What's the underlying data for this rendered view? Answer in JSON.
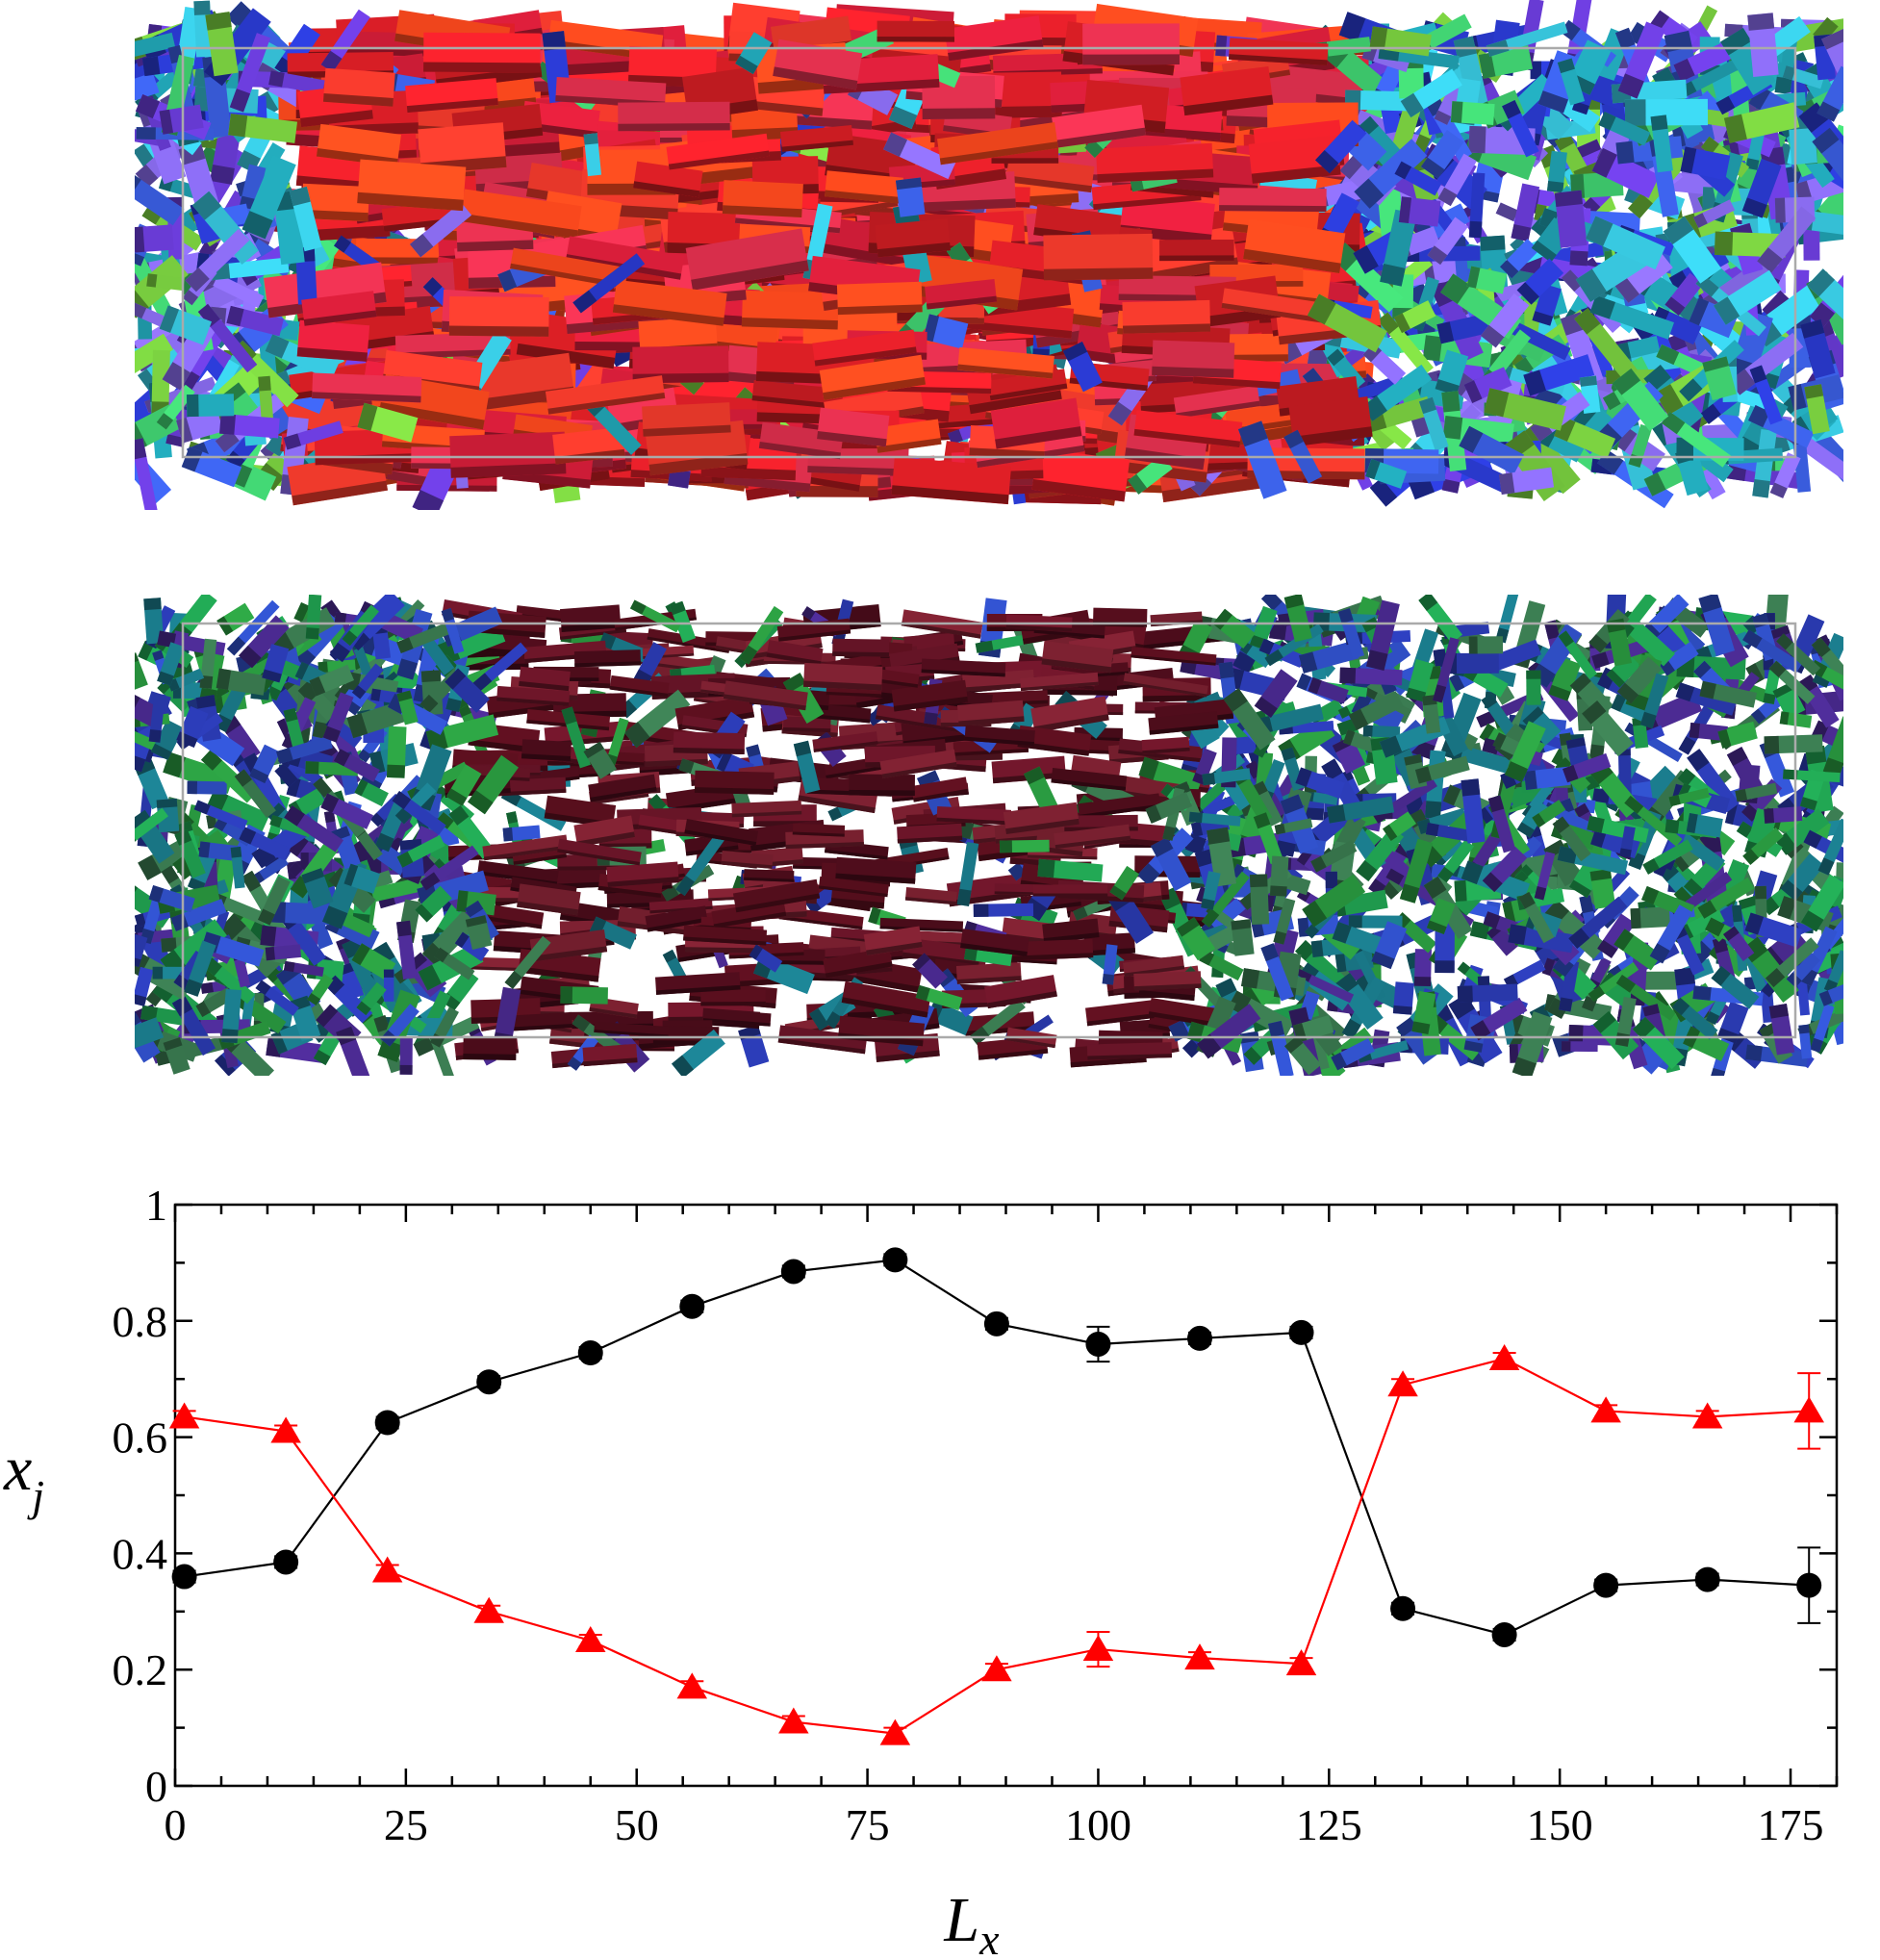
{
  "figure": {
    "panels": [
      {
        "name": "top-snapshot",
        "palette": [
          "#e8202a",
          "#f03a2c",
          "#d81e3a",
          "#ff4a1e",
          "#e0304e",
          "#c81c22"
        ],
        "background_palette": [
          "#6a3cd8",
          "#3a5ee0",
          "#2a3ad0",
          "#38c8e0",
          "#40d070",
          "#8a6cf0",
          "#20a0b0",
          "#7ad040"
        ]
      },
      {
        "name": "bottom-snapshot",
        "palette": [
          "#5a0f1e",
          "#6a1528",
          "#4a0c1a",
          "#7a2030"
        ],
        "background_palette": [
          "#2a3ab0",
          "#3050c8",
          "#1a7a8a",
          "#2a9a40",
          "#3a7a50",
          "#4a2a90",
          "#20a050"
        ]
      }
    ]
  },
  "chart_data": {
    "type": "line",
    "xlabel": "L",
    "xlabel_subscript": "x",
    "ylabel": "x",
    "ylabel_subscript": "j",
    "xlim": [
      0,
      180
    ],
    "ylim": [
      0,
      1
    ],
    "xticks": [
      "0",
      "25",
      "50",
      "75",
      "100",
      "125",
      "150",
      "175"
    ],
    "yticks": [
      "0",
      "0.2",
      "0.4",
      "0.6",
      "0.8",
      "1"
    ],
    "grid": false,
    "series": [
      {
        "color": "#000000",
        "marker": "circle",
        "x": [
          1,
          12,
          23,
          34,
          45,
          56,
          67,
          78,
          89,
          100,
          111,
          122,
          133,
          144,
          155,
          166,
          177
        ],
        "y": [
          0.36,
          0.385,
          0.625,
          0.695,
          0.745,
          0.825,
          0.885,
          0.905,
          0.795,
          0.76,
          0.77,
          0.78,
          0.305,
          0.26,
          0.345,
          0.355,
          0.345
        ],
        "err": [
          0.01,
          0.01,
          0.01,
          0.01,
          0.01,
          0.01,
          0.01,
          0.01,
          0.01,
          0.03,
          0.01,
          0.01,
          0.01,
          0.01,
          0.01,
          0.01,
          0.065
        ]
      },
      {
        "color": "#ff0000",
        "marker": "triangle",
        "x": [
          1,
          12,
          23,
          34,
          45,
          56,
          67,
          78,
          89,
          100,
          111,
          122,
          133,
          144,
          155,
          166,
          177
        ],
        "y": [
          0.635,
          0.61,
          0.37,
          0.3,
          0.25,
          0.17,
          0.11,
          0.09,
          0.2,
          0.235,
          0.22,
          0.21,
          0.69,
          0.735,
          0.645,
          0.635,
          0.645
        ],
        "err": [
          0.01,
          0.01,
          0.01,
          0.01,
          0.01,
          0.01,
          0.01,
          0.01,
          0.01,
          0.03,
          0.01,
          0.01,
          0.01,
          0.01,
          0.01,
          0.01,
          0.065
        ]
      }
    ]
  }
}
